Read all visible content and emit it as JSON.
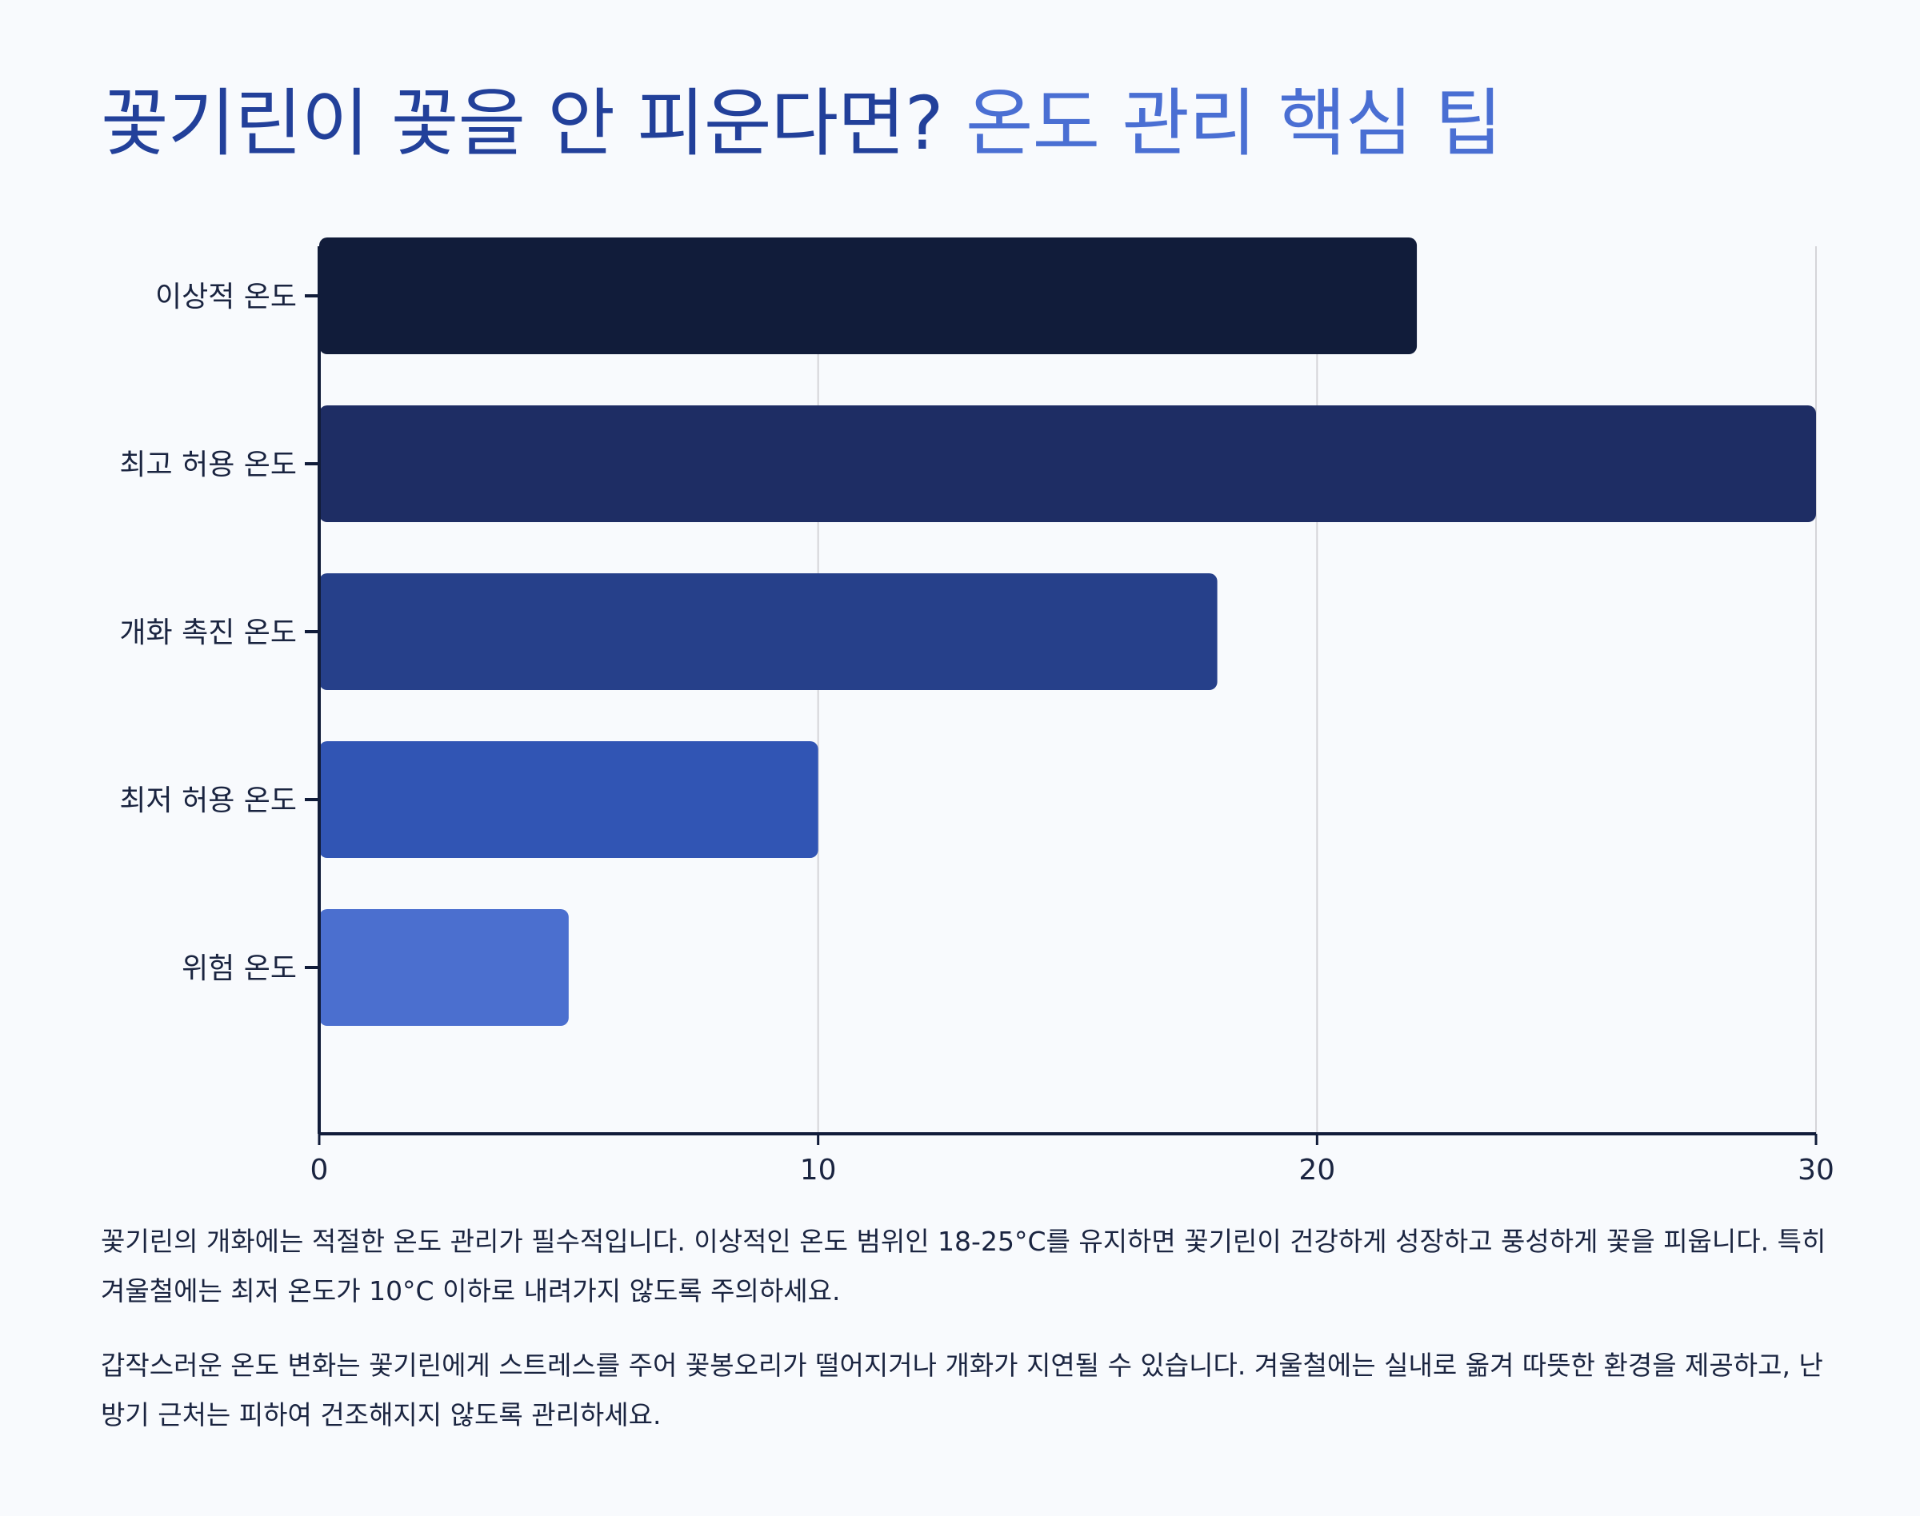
{
  "title": {
    "part1": "꽃기린이 꽃을 안 피운다면?",
    "part2": "온도 관리 핵심 팁"
  },
  "chart_data": {
    "type": "bar",
    "orientation": "horizontal",
    "categories": [
      "이상적 온도",
      "최고 허용 온도",
      "개화 촉진 온도",
      "최저 허용 온도",
      "위험 온도"
    ],
    "values": [
      22,
      30,
      18,
      10,
      5
    ],
    "colors": [
      "#111c3a",
      "#1e2d64",
      "#26408a",
      "#3155b4",
      "#4b6fcf"
    ],
    "xlim": [
      0,
      30
    ],
    "xticks": [
      0,
      10,
      20,
      30
    ],
    "grid": true,
    "title": "",
    "xlabel": "",
    "ylabel": ""
  },
  "paragraphs": [
    "꽃기린의 개화에는 적절한 온도 관리가 필수적입니다. 이상적인 온도 범위인 18-25°C를 유지하면 꽃기린이 건강하게 성장하고 풍성하게 꽃을 피웁니다. 특히 겨울철에는 최저 온도가 10°C 이하로 내려가지 않도록 주의하세요.",
    "갑작스러운 온도 변화는 꽃기린에게 스트레스를 주어 꽃봉오리가 떨어지거나 개화가 지연될 수 있습니다. 겨울철에는 실내로 옮겨 따뜻한 환경을 제공하고, 난방기 근처는 피하여 건조해지지 않도록 관리하세요."
  ],
  "colors": {
    "title_dark": "#22409a",
    "title_light": "#4a6fd3",
    "axis": "#111c3a",
    "grid": "#d4d4d8",
    "background": "#f8fafd"
  }
}
